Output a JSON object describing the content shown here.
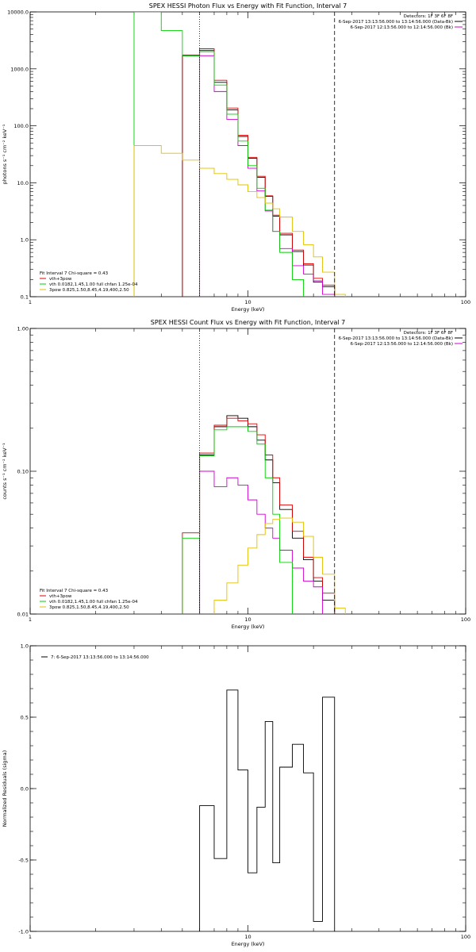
{
  "chart_data": [
    {
      "type": "line",
      "title": "SPEX HESSI Photon Flux vs Energy with Fit Function, Interval 7",
      "xlabel": "Energy (keV)",
      "ylabel": "photons s⁻¹ cm⁻² keV⁻¹",
      "xscale": "log",
      "yscale": "log",
      "xlim": [
        1,
        100
      ],
      "ylim": [
        0.1,
        10000
      ],
      "x_ticks": [
        {
          "v": 1,
          "label": "1"
        },
        {
          "v": 10,
          "label": "10"
        },
        {
          "v": 100,
          "label": "100"
        }
      ],
      "y_ticks": [
        {
          "v": 0.1,
          "label": "0.1"
        },
        {
          "v": 1,
          "label": "1.0"
        },
        {
          "v": 10,
          "label": "10.0"
        },
        {
          "v": 100,
          "label": "100.0"
        },
        {
          "v": 1000,
          "label": "1000.0"
        },
        {
          "v": 10000,
          "label": "10000.0"
        }
      ],
      "header": [
        "Detectors: 1F 3F 6F 8F",
        "6-Sep-2017 13:13:56.000 to 13:14:56.000 (Data-Bk)",
        "6-Sep-2017 12:13:56.000 to 12:14:56.000 (Bk)"
      ],
      "header_colors": [
        "#000000",
        "#000000",
        "#d000d0"
      ],
      "legend_title": "Fit Interval 7   Chi-square = 0.43",
      "legend": [
        {
          "label": "vth+3pow",
          "color": "#e00000"
        },
        {
          "label": "vth 0.0182,1.45,1.00  full chfan 1.25e-04",
          "color": "#00d000"
        },
        {
          "label": "3pow 0.825,1.50,8.45,4.19,400,2.50",
          "color": "#e0c000"
        }
      ],
      "vlines": [
        {
          "x": 6.0,
          "style": "dotted"
        },
        {
          "x": 25.0,
          "style": "dashed"
        }
      ],
      "series": [
        {
          "key": "data",
          "color": "#000000",
          "edges": [
            5,
            6,
            7,
            8,
            9,
            10,
            11,
            12,
            13,
            14,
            16,
            18,
            20,
            22,
            25
          ],
          "values": [
            1700,
            2100,
            580,
            190,
            65,
            27,
            12.5,
            5.8,
            2.6,
            1.22,
            0.62,
            0.36,
            0.18,
            0.15
          ]
        },
        {
          "key": "vth_3pow",
          "color": "#e00000",
          "edges": [
            5,
            6,
            7,
            8,
            9,
            10,
            11,
            12,
            13,
            14,
            16,
            18,
            20,
            22,
            25
          ],
          "values": [
            1750,
            2250,
            630,
            205,
            68,
            28,
            13,
            5.9,
            2.7,
            1.3,
            0.66,
            0.38,
            0.21,
            0.16
          ]
        },
        {
          "key": "background",
          "color": "#d000d0",
          "edges": [
            6,
            7,
            8,
            9,
            10,
            11,
            12,
            13,
            14,
            16,
            18,
            20,
            22,
            25
          ],
          "values": [
            1700,
            400,
            130,
            45,
            18,
            7.2,
            3.2,
            1.4,
            0.7,
            0.35,
            0.25,
            0.19,
            0.11
          ]
        },
        {
          "key": "vth",
          "color": "#00d000",
          "edges": [
            3,
            4,
            5,
            6,
            7,
            8,
            9,
            10,
            11,
            12,
            13,
            14,
            16,
            18
          ],
          "values": [
            10000,
            4700,
            1700,
            2000,
            520,
            160,
            54,
            20,
            8,
            3.3,
            1.4,
            0.6,
            0.2
          ]
        },
        {
          "key": "3pow",
          "color": "#e0c000",
          "edges": [
            3,
            4,
            5,
            6,
            7,
            8,
            9,
            10,
            11,
            12,
            13,
            14,
            16,
            18,
            20,
            22,
            25,
            28
          ],
          "values": [
            45,
            33,
            25,
            18,
            14.5,
            11.5,
            9.2,
            7,
            5.5,
            4.4,
            3.5,
            2.5,
            1.4,
            0.82,
            0.5,
            0.27,
            0.11
          ]
        }
      ]
    },
    {
      "type": "line",
      "title": "SPEX HESSI Count Flux vs Energy with Fit Function, Interval 7",
      "xlabel": "Energy (keV)",
      "ylabel": "counts s⁻¹ cm⁻² keV⁻¹",
      "xscale": "log",
      "yscale": "log",
      "xlim": [
        1,
        100
      ],
      "ylim": [
        0.01,
        1.0
      ],
      "x_ticks": [
        {
          "v": 1,
          "label": "1"
        },
        {
          "v": 10,
          "label": "10"
        },
        {
          "v": 100,
          "label": "100"
        }
      ],
      "y_ticks": [
        {
          "v": 0.01,
          "label": "0.01"
        },
        {
          "v": 0.1,
          "label": "0.10"
        },
        {
          "v": 1,
          "label": "1.00"
        }
      ],
      "header": [
        "Detectors: 1F 3F 6F 8F",
        "6-Sep-2017 13:13:56.000 to 13:14:56.000 (Data-Bk)",
        "6-Sep-2017 12:13:56.000 to 12:14:56.000 (Bk)"
      ],
      "header_colors": [
        "#000000",
        "#000000",
        "#d000d0"
      ],
      "legend_title": "Fit Interval 7   Chi-square = 0.43",
      "legend": [
        {
          "label": "vth+3pow",
          "color": "#e00000"
        },
        {
          "label": "vth 0.0182,1.45,1.00  full chfan 1.25e-04",
          "color": "#00d000"
        },
        {
          "label": "3pow 0.825,1.50,8.45,4.19,400,2.50",
          "color": "#e0c000"
        }
      ],
      "vlines": [
        {
          "x": 6.0,
          "style": "dotted"
        },
        {
          "x": 25.0,
          "style": "dashed"
        }
      ],
      "series": [
        {
          "key": "data",
          "color": "#000000",
          "edges": [
            6,
            7,
            8,
            9,
            10,
            11,
            12,
            13,
            14,
            16,
            18,
            20,
            22,
            25
          ],
          "values": [
            0.13,
            0.205,
            0.245,
            0.235,
            0.205,
            0.165,
            0.12,
            0.083,
            0.054,
            0.034,
            0.024,
            0.017,
            0.0125
          ]
        },
        {
          "key": "vth_3pow",
          "color": "#e00000",
          "edges": [
            5,
            6,
            7,
            8,
            9,
            10,
            11,
            12,
            13,
            14,
            16,
            18,
            20,
            22,
            25
          ],
          "values": [
            0.037,
            0.134,
            0.21,
            0.235,
            0.225,
            0.215,
            0.18,
            0.13,
            0.09,
            0.058,
            0.038,
            0.025,
            0.018,
            0.014
          ]
        },
        {
          "key": "background",
          "color": "#d000d0",
          "edges": [
            6,
            7,
            8,
            9,
            10,
            11,
            12,
            13,
            14,
            16,
            18,
            20,
            22
          ],
          "values": [
            0.1,
            0.078,
            0.09,
            0.08,
            0.063,
            0.05,
            0.04,
            0.034,
            0.028,
            0.021,
            0.017,
            0.0155
          ]
        },
        {
          "key": "vth",
          "color": "#00d000",
          "edges": [
            5,
            6,
            7,
            8,
            9,
            10,
            11,
            12,
            13,
            14,
            16,
            18
          ],
          "values": [
            0.034,
            0.128,
            0.195,
            0.205,
            0.205,
            0.19,
            0.155,
            0.09,
            0.05,
            0.023,
            0.0095
          ]
        },
        {
          "key": "3pow",
          "color": "#e0c000",
          "edges": [
            6,
            7,
            8,
            9,
            10,
            11,
            12,
            13,
            14,
            16,
            18,
            20,
            22,
            25,
            28
          ],
          "values": [
            0.0085,
            0.0125,
            0.0165,
            0.022,
            0.029,
            0.036,
            0.043,
            0.046,
            0.047,
            0.044,
            0.035,
            0.025,
            0.019,
            0.011
          ]
        }
      ]
    },
    {
      "type": "line",
      "title": "",
      "xlabel": "Energy (keV)",
      "ylabel": "Normalized Residuals (sigma)",
      "xscale": "log",
      "yscale": "linear",
      "xlim": [
        1,
        100
      ],
      "ylim": [
        -1.0,
        1.0
      ],
      "x_ticks": [
        {
          "v": 1,
          "label": "1"
        },
        {
          "v": 10,
          "label": "10"
        },
        {
          "v": 100,
          "label": "100"
        }
      ],
      "y_ticks": [
        {
          "v": -1,
          "label": "-1.0"
        },
        {
          "v": -0.5,
          "label": "-0.5"
        },
        {
          "v": 0,
          "label": "0.0"
        },
        {
          "v": 0.5,
          "label": "0.5"
        },
        {
          "v": 1,
          "label": "1.0"
        }
      ],
      "header": [],
      "header_colors": [],
      "legend_title": "",
      "legend": [
        {
          "label": "7:  6-Sep-2017 13:13:56.000 to 13:14:56.000",
          "color": "#000000"
        }
      ],
      "vlines": [],
      "series": [
        {
          "key": "residuals",
          "color": "#000000",
          "edges": [
            6,
            7,
            8,
            9,
            10,
            11,
            12,
            13,
            14,
            16,
            18,
            20,
            22,
            25
          ],
          "values": [
            -0.12,
            -0.49,
            0.69,
            0.13,
            -0.59,
            -0.13,
            0.47,
            -0.52,
            0.15,
            0.31,
            0.11,
            -0.93,
            0.64
          ]
        }
      ]
    }
  ]
}
